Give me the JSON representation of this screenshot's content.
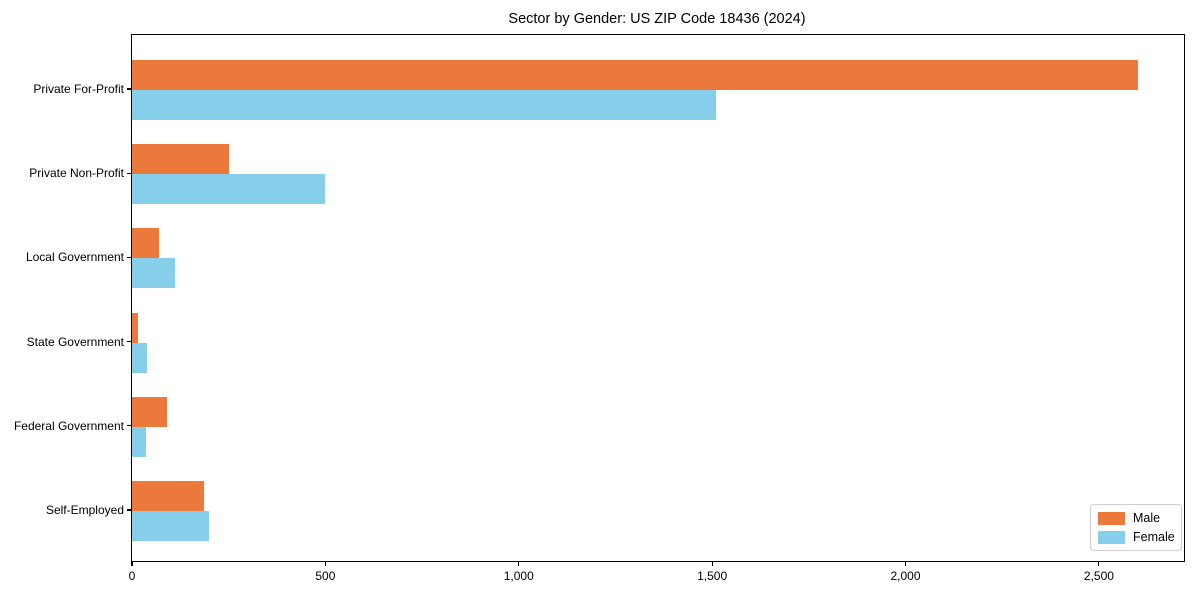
{
  "title": "Sector by Gender: US ZIP Code 18436 (2024)",
  "colors": {
    "male": "#EC793C",
    "female": "#87CEEB",
    "axis": "#000000",
    "legend_border": "#CCCCCC",
    "background": "#FFFFFF"
  },
  "chart_data": {
    "type": "bar",
    "orientation": "horizontal",
    "title": "Sector by Gender: US ZIP Code 18436 (2024)",
    "xlabel": "",
    "ylabel": "",
    "categories": [
      "Private For-Profit",
      "Private Non-Profit",
      "Local Government",
      "State Government",
      "Federal Government",
      "Self-Employed"
    ],
    "series": [
      {
        "name": "Male",
        "color": "#EC793C",
        "values": [
          2600,
          250,
          70,
          15,
          90,
          185
        ]
      },
      {
        "name": "Female",
        "color": "#87CEEB",
        "values": [
          1510,
          500,
          110,
          40,
          35,
          200
        ]
      }
    ],
    "xlim": [
      0,
      2720
    ],
    "x_ticks": [
      0,
      500,
      1000,
      1500,
      2000,
      2500
    ],
    "x_tick_labels": [
      "0",
      "500",
      "1,000",
      "1,500",
      "2,000",
      "2,500"
    ],
    "grid": false,
    "legend_position": "lower right"
  }
}
